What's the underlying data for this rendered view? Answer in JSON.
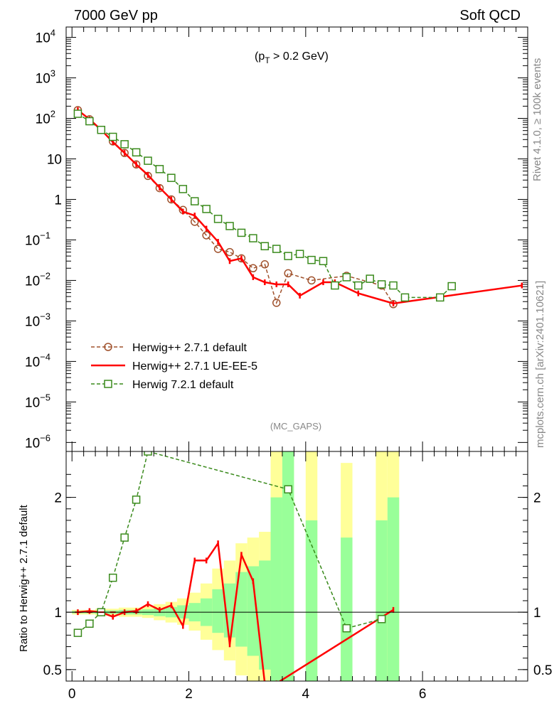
{
  "header": {
    "left_title": "7000 GeV pp",
    "right_title": "Soft QCD"
  },
  "annotations": {
    "cut": "(p_T > 0.2 GeV)",
    "gaps": "(MC_GAPS)",
    "side_rivet": "Rivet 4.1.0, ≥ 100k events",
    "side_site": "mcplots.cern.ch [arXiv:2401.10621]"
  },
  "colors": {
    "brown": "#a0522d",
    "red": "#ff0000",
    "green": "#3a8a1c",
    "band_yellow": "#ffff99",
    "band_green": "#99ff99"
  },
  "chart_data": [
    {
      "type": "line",
      "panel": "main",
      "yscale": "log",
      "xlim": [
        -0.1,
        7.8
      ],
      "ylim": [
        6e-07,
        18000
      ],
      "x_ticks": [
        0,
        2,
        4,
        6
      ],
      "y_tick_labels": [
        "10^4",
        "10^3",
        "10^2",
        "10",
        "1",
        "10^-1",
        "10^-2",
        "10^-3",
        "10^-4",
        "10^-5",
        "10^-6"
      ],
      "legend": [
        {
          "label": "Herwig++ 2.7.1 default",
          "style": "dashed-circle",
          "color": "#a0522d"
        },
        {
          "label": "Herwig++ 2.7.1 UE-EE-5",
          "style": "solid",
          "color": "#ff0000"
        },
        {
          "label": "Herwig 7.2.1 default",
          "style": "dashed-square",
          "color": "#3a8a1c"
        }
      ],
      "series": [
        {
          "name": "Herwig++ 2.7.1 default",
          "x": [
            0.1,
            0.3,
            0.5,
            0.7,
            0.9,
            1.1,
            1.3,
            1.5,
            1.7,
            1.9,
            2.1,
            2.3,
            2.5,
            2.7,
            2.9,
            3.1,
            3.3,
            3.5,
            3.7,
            4.1,
            4.7,
            5.3,
            5.5
          ],
          "y": [
            160,
            95,
            52,
            27,
            14,
            7.3,
            3.8,
            1.9,
            1.0,
            0.55,
            0.28,
            0.13,
            0.06,
            0.05,
            0.035,
            0.02,
            0.025,
            0.0028,
            0.015,
            0.01,
            0.013,
            0.0075,
            0.0026
          ]
        },
        {
          "name": "Herwig++ 2.7.1 UE-EE-5",
          "x": [
            0.1,
            0.3,
            0.5,
            0.7,
            0.9,
            1.1,
            1.3,
            1.5,
            1.7,
            1.9,
            2.1,
            2.3,
            2.5,
            2.7,
            2.9,
            3.1,
            3.3,
            3.5,
            3.7,
            3.9,
            4.3,
            4.5,
            4.9,
            5.5,
            7.7
          ],
          "y": [
            160,
            95,
            52,
            26,
            14,
            7.3,
            4.0,
            1.95,
            1.0,
            0.5,
            0.4,
            0.19,
            0.09,
            0.03,
            0.035,
            0.012,
            0.009,
            0.008,
            0.008,
            0.0042,
            0.009,
            0.009,
            0.0048,
            0.0027,
            0.0075
          ]
        },
        {
          "name": "Herwig 7.2.1 default",
          "x": [
            0.1,
            0.3,
            0.5,
            0.7,
            0.9,
            1.1,
            1.3,
            1.5,
            1.7,
            1.9,
            2.1,
            2.3,
            2.5,
            2.7,
            2.9,
            3.1,
            3.3,
            3.5,
            3.7,
            3.9,
            4.1,
            4.3,
            4.5,
            4.7,
            4.9,
            5.1,
            5.3,
            5.5,
            5.7,
            6.3,
            6.5
          ],
          "y": [
            130,
            85,
            52,
            35,
            23,
            14.5,
            9.0,
            5.6,
            3.4,
            1.8,
            0.9,
            0.58,
            0.33,
            0.22,
            0.15,
            0.11,
            0.07,
            0.06,
            0.04,
            0.045,
            0.032,
            0.03,
            0.0075,
            0.012,
            0.0075,
            0.011,
            0.008,
            0.0075,
            0.0038,
            0.0038,
            0.0072
          ]
        }
      ]
    },
    {
      "type": "line",
      "panel": "ratio",
      "ylabel": "Ratio to Herwig++ 2.7.1 default",
      "xlim": [
        -0.1,
        7.8
      ],
      "ylim": [
        0.4,
        2.4
      ],
      "y_ticks": [
        0.5,
        1,
        2
      ],
      "x_ticks": [
        0,
        2,
        4,
        6
      ],
      "bands": [
        {
          "x0": 0.0,
          "x1": 0.4,
          "yellow": [
            0.98,
            1.02
          ],
          "green": [
            0.99,
            1.01
          ]
        },
        {
          "x0": 0.4,
          "x1": 0.8,
          "yellow": [
            0.97,
            1.03
          ],
          "green": [
            0.985,
            1.015
          ]
        },
        {
          "x0": 0.8,
          "x1": 1.2,
          "yellow": [
            0.96,
            1.04
          ],
          "green": [
            0.98,
            1.02
          ]
        },
        {
          "x0": 1.2,
          "x1": 1.4,
          "yellow": [
            0.95,
            1.05
          ],
          "green": [
            0.975,
            1.025
          ]
        },
        {
          "x0": 1.4,
          "x1": 1.6,
          "yellow": [
            0.93,
            1.07
          ],
          "green": [
            0.965,
            1.035
          ]
        },
        {
          "x0": 1.6,
          "x1": 1.8,
          "yellow": [
            0.91,
            1.09
          ],
          "green": [
            0.955,
            1.045
          ]
        },
        {
          "x0": 1.8,
          "x1": 2.0,
          "yellow": [
            0.89,
            1.12
          ],
          "green": [
            0.945,
            1.06
          ]
        },
        {
          "x0": 2.0,
          "x1": 2.2,
          "yellow": [
            0.84,
            1.17
          ],
          "green": [
            0.92,
            1.08
          ]
        },
        {
          "x0": 2.2,
          "x1": 2.4,
          "yellow": [
            0.76,
            1.25
          ],
          "green": [
            0.88,
            1.12
          ]
        },
        {
          "x0": 2.4,
          "x1": 2.6,
          "yellow": [
            0.67,
            1.38
          ],
          "green": [
            0.82,
            1.2
          ]
        },
        {
          "x0": 2.6,
          "x1": 2.8,
          "yellow": [
            0.58,
            1.45
          ],
          "green": [
            0.78,
            1.25
          ]
        },
        {
          "x0": 2.8,
          "x1": 3.0,
          "yellow": [
            0.45,
            1.6
          ],
          "green": [
            0.7,
            1.35
          ]
        },
        {
          "x0": 3.0,
          "x1": 3.2,
          "yellow": [
            0.4,
            1.65
          ],
          "green": [
            0.62,
            1.4
          ]
        },
        {
          "x0": 3.2,
          "x1": 3.4,
          "yellow": [
            0.4,
            1.7
          ],
          "green": [
            0.5,
            1.45
          ]
        },
        {
          "x0": 3.4,
          "x1": 3.6,
          "yellow": [
            0.4,
            2.4
          ],
          "green": [
            0.4,
            2.0
          ]
        },
        {
          "x0": 3.6,
          "x1": 3.8,
          "yellow": [
            0.4,
            2.4
          ],
          "green": [
            0.4,
            2.4
          ]
        },
        {
          "x0": 4.0,
          "x1": 4.2,
          "yellow": [
            0.4,
            2.4
          ],
          "green": [
            0.4,
            1.8
          ]
        },
        {
          "x0": 4.6,
          "x1": 4.8,
          "yellow": [
            0.4,
            2.3
          ],
          "green": [
            0.4,
            1.65
          ]
        },
        {
          "x0": 5.2,
          "x1": 5.4,
          "yellow": [
            0.4,
            2.4
          ],
          "green": [
            0.4,
            1.8
          ]
        },
        {
          "x0": 5.4,
          "x1": 5.6,
          "yellow": [
            0.4,
            2.4
          ],
          "green": [
            0.4,
            2.0
          ]
        }
      ],
      "series": [
        {
          "name": "Herwig++ 2.7.1 UE-EE-5 / default",
          "x": [
            0.1,
            0.3,
            0.5,
            0.7,
            0.9,
            1.1,
            1.3,
            1.5,
            1.7,
            1.9,
            2.1,
            2.3,
            2.5,
            2.7,
            2.9,
            3.1,
            3.3,
            3.5,
            5.5
          ],
          "y": [
            1.0,
            1.01,
            1.0,
            0.96,
            1.0,
            1.01,
            1.07,
            1.02,
            1.06,
            0.88,
            1.45,
            1.45,
            1.6,
            0.72,
            1.5,
            1.27,
            0.38,
            0.38,
            1.02
          ]
        },
        {
          "name": "Herwig 7.2.1 default / Herwig++ 2.7.1 default",
          "x": [
            0.1,
            0.3,
            0.5,
            0.7,
            0.9,
            1.1,
            1.3,
            3.7,
            4.7,
            5.3
          ],
          "y": [
            0.82,
            0.9,
            1.0,
            1.3,
            1.65,
            1.98,
            2.4,
            2.07,
            0.86,
            0.94
          ]
        }
      ]
    }
  ]
}
